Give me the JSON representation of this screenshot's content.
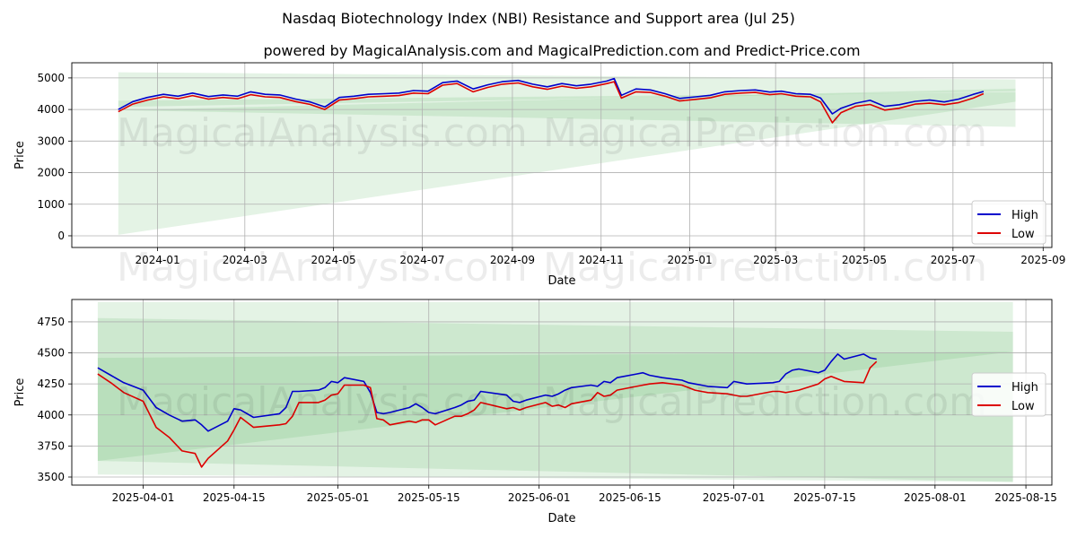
{
  "title": "Nasdaq Biotechnology Index (NBI) Resistance and Support area (Jul 25)",
  "subtitle": "powered by MagicalAnalysis.com and MagicalPrediction.com and Predict-Price.com",
  "watermarks": [
    "MagicalAnalysis.com",
    "MagicalPrediction.com"
  ],
  "colors": {
    "high": "#0000cc",
    "low": "#dd0000",
    "band": "#4caf50",
    "grid": "#b0b0b0"
  },
  "chart_data": [
    {
      "type": "line",
      "name": "full-history",
      "xlabel": "Date",
      "ylabel": "Price",
      "xlim": [
        "2023-11-03",
        "2025-09-07"
      ],
      "ylim": [
        -370,
        5480
      ],
      "x_ticks": [
        "2024-01",
        "2024-03",
        "2024-05",
        "2024-07",
        "2024-09",
        "2024-11",
        "2025-01",
        "2025-03",
        "2025-05",
        "2025-07",
        "2025-09"
      ],
      "x_tick_dates": [
        "2024-01-01",
        "2024-03-01",
        "2024-05-01",
        "2024-07-01",
        "2024-09-01",
        "2024-11-01",
        "2025-01-01",
        "2025-03-01",
        "2025-05-01",
        "2025-07-01",
        "2025-09-01"
      ],
      "y_ticks": [
        0,
        1000,
        2000,
        3000,
        4000,
        5000
      ],
      "grid": true,
      "legend": {
        "position": "lower-right",
        "entries": [
          "High",
          "Low"
        ]
      },
      "bands": [
        {
          "x": [
            "2023-12-05",
            "2025-08-13"
          ],
          "upper": [
            5180,
            4950
          ],
          "lower": [
            4080,
            4580
          ]
        },
        {
          "x": [
            "2023-12-05",
            "2025-08-13"
          ],
          "upper": [
            4280,
            4550
          ],
          "lower": [
            30,
            4250
          ]
        },
        {
          "x": [
            "2023-12-05",
            "2025-08-13"
          ],
          "upper": [
            3980,
            4660
          ],
          "lower": [
            3980,
            3450
          ]
        }
      ],
      "series": [
        {
          "name": "High",
          "x": [
            "2023-12-05",
            "2023-12-15",
            "2023-12-25",
            "2024-01-05",
            "2024-01-15",
            "2024-01-25",
            "2024-02-05",
            "2024-02-15",
            "2024-02-25",
            "2024-03-05",
            "2024-03-15",
            "2024-03-25",
            "2024-04-05",
            "2024-04-15",
            "2024-04-25",
            "2024-05-05",
            "2024-05-15",
            "2024-05-25",
            "2024-06-05",
            "2024-06-15",
            "2024-06-25",
            "2024-07-05",
            "2024-07-15",
            "2024-07-25",
            "2024-08-05",
            "2024-08-15",
            "2024-08-25",
            "2024-09-05",
            "2024-09-15",
            "2024-09-25",
            "2024-10-05",
            "2024-10-15",
            "2024-10-25",
            "2024-11-05",
            "2024-11-10",
            "2024-11-15",
            "2024-11-25",
            "2024-12-05",
            "2024-12-15",
            "2024-12-25",
            "2025-01-05",
            "2025-01-15",
            "2025-01-25",
            "2025-02-05",
            "2025-02-15",
            "2025-02-25",
            "2025-03-05",
            "2025-03-15",
            "2025-03-25",
            "2025-04-01",
            "2025-04-09",
            "2025-04-15",
            "2025-04-25",
            "2025-05-05",
            "2025-05-15",
            "2025-05-25",
            "2025-06-05",
            "2025-06-15",
            "2025-06-25",
            "2025-07-05",
            "2025-07-15",
            "2025-07-22"
          ],
          "values": [
            4000,
            4250,
            4380,
            4480,
            4420,
            4520,
            4410,
            4460,
            4420,
            4560,
            4480,
            4460,
            4330,
            4240,
            4080,
            4380,
            4420,
            4480,
            4500,
            4520,
            4600,
            4580,
            4850,
            4900,
            4650,
            4780,
            4880,
            4920,
            4800,
            4720,
            4820,
            4750,
            4800,
            4900,
            4980,
            4450,
            4650,
            4620,
            4500,
            4350,
            4400,
            4450,
            4560,
            4600,
            4620,
            4550,
            4580,
            4500,
            4480,
            4360,
            3860,
            4040,
            4200,
            4290,
            4100,
            4150,
            4260,
            4300,
            4240,
            4330,
            4480,
            4570
          ]
        },
        {
          "name": "Low",
          "x": [
            "2023-12-05",
            "2023-12-15",
            "2023-12-25",
            "2024-01-05",
            "2024-01-15",
            "2024-01-25",
            "2024-02-05",
            "2024-02-15",
            "2024-02-25",
            "2024-03-05",
            "2024-03-15",
            "2024-03-25",
            "2024-04-05",
            "2024-04-15",
            "2024-04-25",
            "2024-05-05",
            "2024-05-15",
            "2024-05-25",
            "2024-06-05",
            "2024-06-15",
            "2024-06-25",
            "2024-07-05",
            "2024-07-15",
            "2024-07-25",
            "2024-08-05",
            "2024-08-15",
            "2024-08-25",
            "2024-09-05",
            "2024-09-15",
            "2024-09-25",
            "2024-10-05",
            "2024-10-15",
            "2024-10-25",
            "2024-11-05",
            "2024-11-10",
            "2024-11-15",
            "2024-11-25",
            "2024-12-05",
            "2024-12-15",
            "2024-12-25",
            "2025-01-05",
            "2025-01-15",
            "2025-01-25",
            "2025-02-05",
            "2025-02-15",
            "2025-02-25",
            "2025-03-05",
            "2025-03-15",
            "2025-03-25",
            "2025-04-01",
            "2025-04-09",
            "2025-04-15",
            "2025-04-25",
            "2025-05-05",
            "2025-05-15",
            "2025-05-25",
            "2025-06-05",
            "2025-06-15",
            "2025-06-25",
            "2025-07-05",
            "2025-07-15",
            "2025-07-22"
          ],
          "values": [
            3930,
            4170,
            4300,
            4400,
            4340,
            4440,
            4330,
            4380,
            4340,
            4470,
            4400,
            4380,
            4250,
            4160,
            4000,
            4300,
            4340,
            4400,
            4420,
            4440,
            4520,
            4500,
            4770,
            4820,
            4560,
            4700,
            4800,
            4840,
            4720,
            4640,
            4740,
            4670,
            4720,
            4820,
            4880,
            4360,
            4560,
            4540,
            4420,
            4270,
            4320,
            4370,
            4480,
            4520,
            4540,
            4470,
            4500,
            4420,
            4400,
            4240,
            3580,
            3900,
            4100,
            4160,
            3980,
            4040,
            4170,
            4200,
            4150,
            4220,
            4360,
            4500
          ]
        }
      ]
    },
    {
      "type": "line",
      "name": "recent-zoom",
      "xlabel": "Date",
      "ylabel": "Price",
      "xlim": [
        "2025-03-21",
        "2025-08-19"
      ],
      "ylim": [
        3435,
        4930
      ],
      "x_ticks": [
        "2025-04-01",
        "2025-04-15",
        "2025-05-01",
        "2025-05-15",
        "2025-06-01",
        "2025-06-15",
        "2025-07-01",
        "2025-07-15",
        "2025-08-01",
        "2025-08-15"
      ],
      "y_ticks": [
        3500,
        3750,
        4000,
        4250,
        4500,
        4750
      ],
      "grid": true,
      "legend": {
        "position": "center-right",
        "entries": [
          "High",
          "Low"
        ]
      },
      "bands": [
        {
          "x": [
            "2025-03-25",
            "2025-08-13"
          ],
          "upper": [
            4910,
            4910
          ],
          "lower": [
            3520,
            3460
          ]
        },
        {
          "x": [
            "2025-03-25",
            "2025-08-13"
          ],
          "upper": [
            4780,
            4670
          ],
          "lower": [
            3630,
            3460
          ]
        },
        {
          "x": [
            "2025-03-25",
            "2025-08-13"
          ],
          "upper": [
            4460,
            4510
          ],
          "lower": [
            3630,
            4510
          ]
        }
      ],
      "series": [
        {
          "name": "High",
          "x": [
            "2025-03-25",
            "2025-03-27",
            "2025-03-29",
            "2025-04-01",
            "2025-04-03",
            "2025-04-05",
            "2025-04-07",
            "2025-04-09",
            "2025-04-10",
            "2025-04-11",
            "2025-04-14",
            "2025-04-15",
            "2025-04-16",
            "2025-04-18",
            "2025-04-22",
            "2025-04-23",
            "2025-04-24",
            "2025-04-25",
            "2025-04-28",
            "2025-04-29",
            "2025-04-30",
            "2025-05-01",
            "2025-05-02",
            "2025-05-05",
            "2025-05-06",
            "2025-05-07",
            "2025-05-08",
            "2025-05-09",
            "2025-05-12",
            "2025-05-13",
            "2025-05-14",
            "2025-05-15",
            "2025-05-16",
            "2025-05-19",
            "2025-05-20",
            "2025-05-21",
            "2025-05-22",
            "2025-05-23",
            "2025-05-27",
            "2025-05-28",
            "2025-05-29",
            "2025-05-30",
            "2025-06-02",
            "2025-06-03",
            "2025-06-04",
            "2025-06-05",
            "2025-06-06",
            "2025-06-09",
            "2025-06-10",
            "2025-06-11",
            "2025-06-12",
            "2025-06-13",
            "2025-06-16",
            "2025-06-17",
            "2025-06-18",
            "2025-06-20",
            "2025-06-23",
            "2025-06-24",
            "2025-06-25",
            "2025-06-26",
            "2025-06-27",
            "2025-06-30",
            "2025-07-01",
            "2025-07-02",
            "2025-07-03",
            "2025-07-07",
            "2025-07-08",
            "2025-07-09",
            "2025-07-10",
            "2025-07-11",
            "2025-07-14",
            "2025-07-15",
            "2025-07-16",
            "2025-07-17",
            "2025-07-18",
            "2025-07-21",
            "2025-07-22",
            "2025-07-23"
          ],
          "values": [
            4380,
            4320,
            4260,
            4200,
            4060,
            4000,
            3950,
            3960,
            3920,
            3870,
            3950,
            4050,
            4040,
            3980,
            4010,
            4060,
            4190,
            4190,
            4200,
            4220,
            4270,
            4260,
            4300,
            4270,
            4180,
            4020,
            4010,
            4020,
            4060,
            4090,
            4060,
            4020,
            4010,
            4060,
            4080,
            4110,
            4120,
            4190,
            4160,
            4110,
            4100,
            4120,
            4160,
            4150,
            4170,
            4200,
            4220,
            4240,
            4230,
            4270,
            4260,
            4300,
            4330,
            4340,
            4320,
            4300,
            4280,
            4260,
            4250,
            4240,
            4230,
            4220,
            4270,
            4260,
            4250,
            4260,
            4270,
            4330,
            4360,
            4370,
            4340,
            4360,
            4430,
            4490,
            4450,
            4490,
            4460,
            4450
          ]
        },
        {
          "name": "Low",
          "x": [
            "2025-03-25",
            "2025-03-27",
            "2025-03-29",
            "2025-04-01",
            "2025-04-03",
            "2025-04-05",
            "2025-04-07",
            "2025-04-09",
            "2025-04-10",
            "2025-04-11",
            "2025-04-14",
            "2025-04-15",
            "2025-04-16",
            "2025-04-18",
            "2025-04-22",
            "2025-04-23",
            "2025-04-24",
            "2025-04-25",
            "2025-04-28",
            "2025-04-29",
            "2025-04-30",
            "2025-05-01",
            "2025-05-02",
            "2025-05-05",
            "2025-05-06",
            "2025-05-07",
            "2025-05-08",
            "2025-05-09",
            "2025-05-12",
            "2025-05-13",
            "2025-05-14",
            "2025-05-15",
            "2025-05-16",
            "2025-05-19",
            "2025-05-20",
            "2025-05-21",
            "2025-05-22",
            "2025-05-23",
            "2025-05-27",
            "2025-05-28",
            "2025-05-29",
            "2025-05-30",
            "2025-06-02",
            "2025-06-03",
            "2025-06-04",
            "2025-06-05",
            "2025-06-06",
            "2025-06-09",
            "2025-06-10",
            "2025-06-11",
            "2025-06-12",
            "2025-06-13",
            "2025-06-16",
            "2025-06-17",
            "2025-06-18",
            "2025-06-20",
            "2025-06-23",
            "2025-06-24",
            "2025-06-25",
            "2025-06-26",
            "2025-06-27",
            "2025-06-30",
            "2025-07-01",
            "2025-07-02",
            "2025-07-03",
            "2025-07-07",
            "2025-07-08",
            "2025-07-09",
            "2025-07-10",
            "2025-07-11",
            "2025-07-14",
            "2025-07-15",
            "2025-07-16",
            "2025-07-17",
            "2025-07-18",
            "2025-07-21",
            "2025-07-22",
            "2025-07-23"
          ],
          "values": [
            4330,
            4260,
            4180,
            4110,
            3900,
            3820,
            3710,
            3690,
            3580,
            3650,
            3790,
            3880,
            3980,
            3900,
            3920,
            3930,
            3990,
            4100,
            4100,
            4120,
            4160,
            4170,
            4240,
            4240,
            4220,
            3970,
            3960,
            3920,
            3950,
            3940,
            3960,
            3960,
            3920,
            3990,
            3990,
            4010,
            4040,
            4100,
            4050,
            4060,
            4040,
            4060,
            4100,
            4070,
            4080,
            4060,
            4090,
            4120,
            4180,
            4150,
            4160,
            4200,
            4230,
            4240,
            4250,
            4260,
            4240,
            4220,
            4200,
            4190,
            4180,
            4170,
            4160,
            4150,
            4150,
            4190,
            4190,
            4180,
            4190,
            4200,
            4250,
            4290,
            4310,
            4290,
            4270,
            4260,
            4380,
            4430
          ]
        }
      ]
    }
  ]
}
